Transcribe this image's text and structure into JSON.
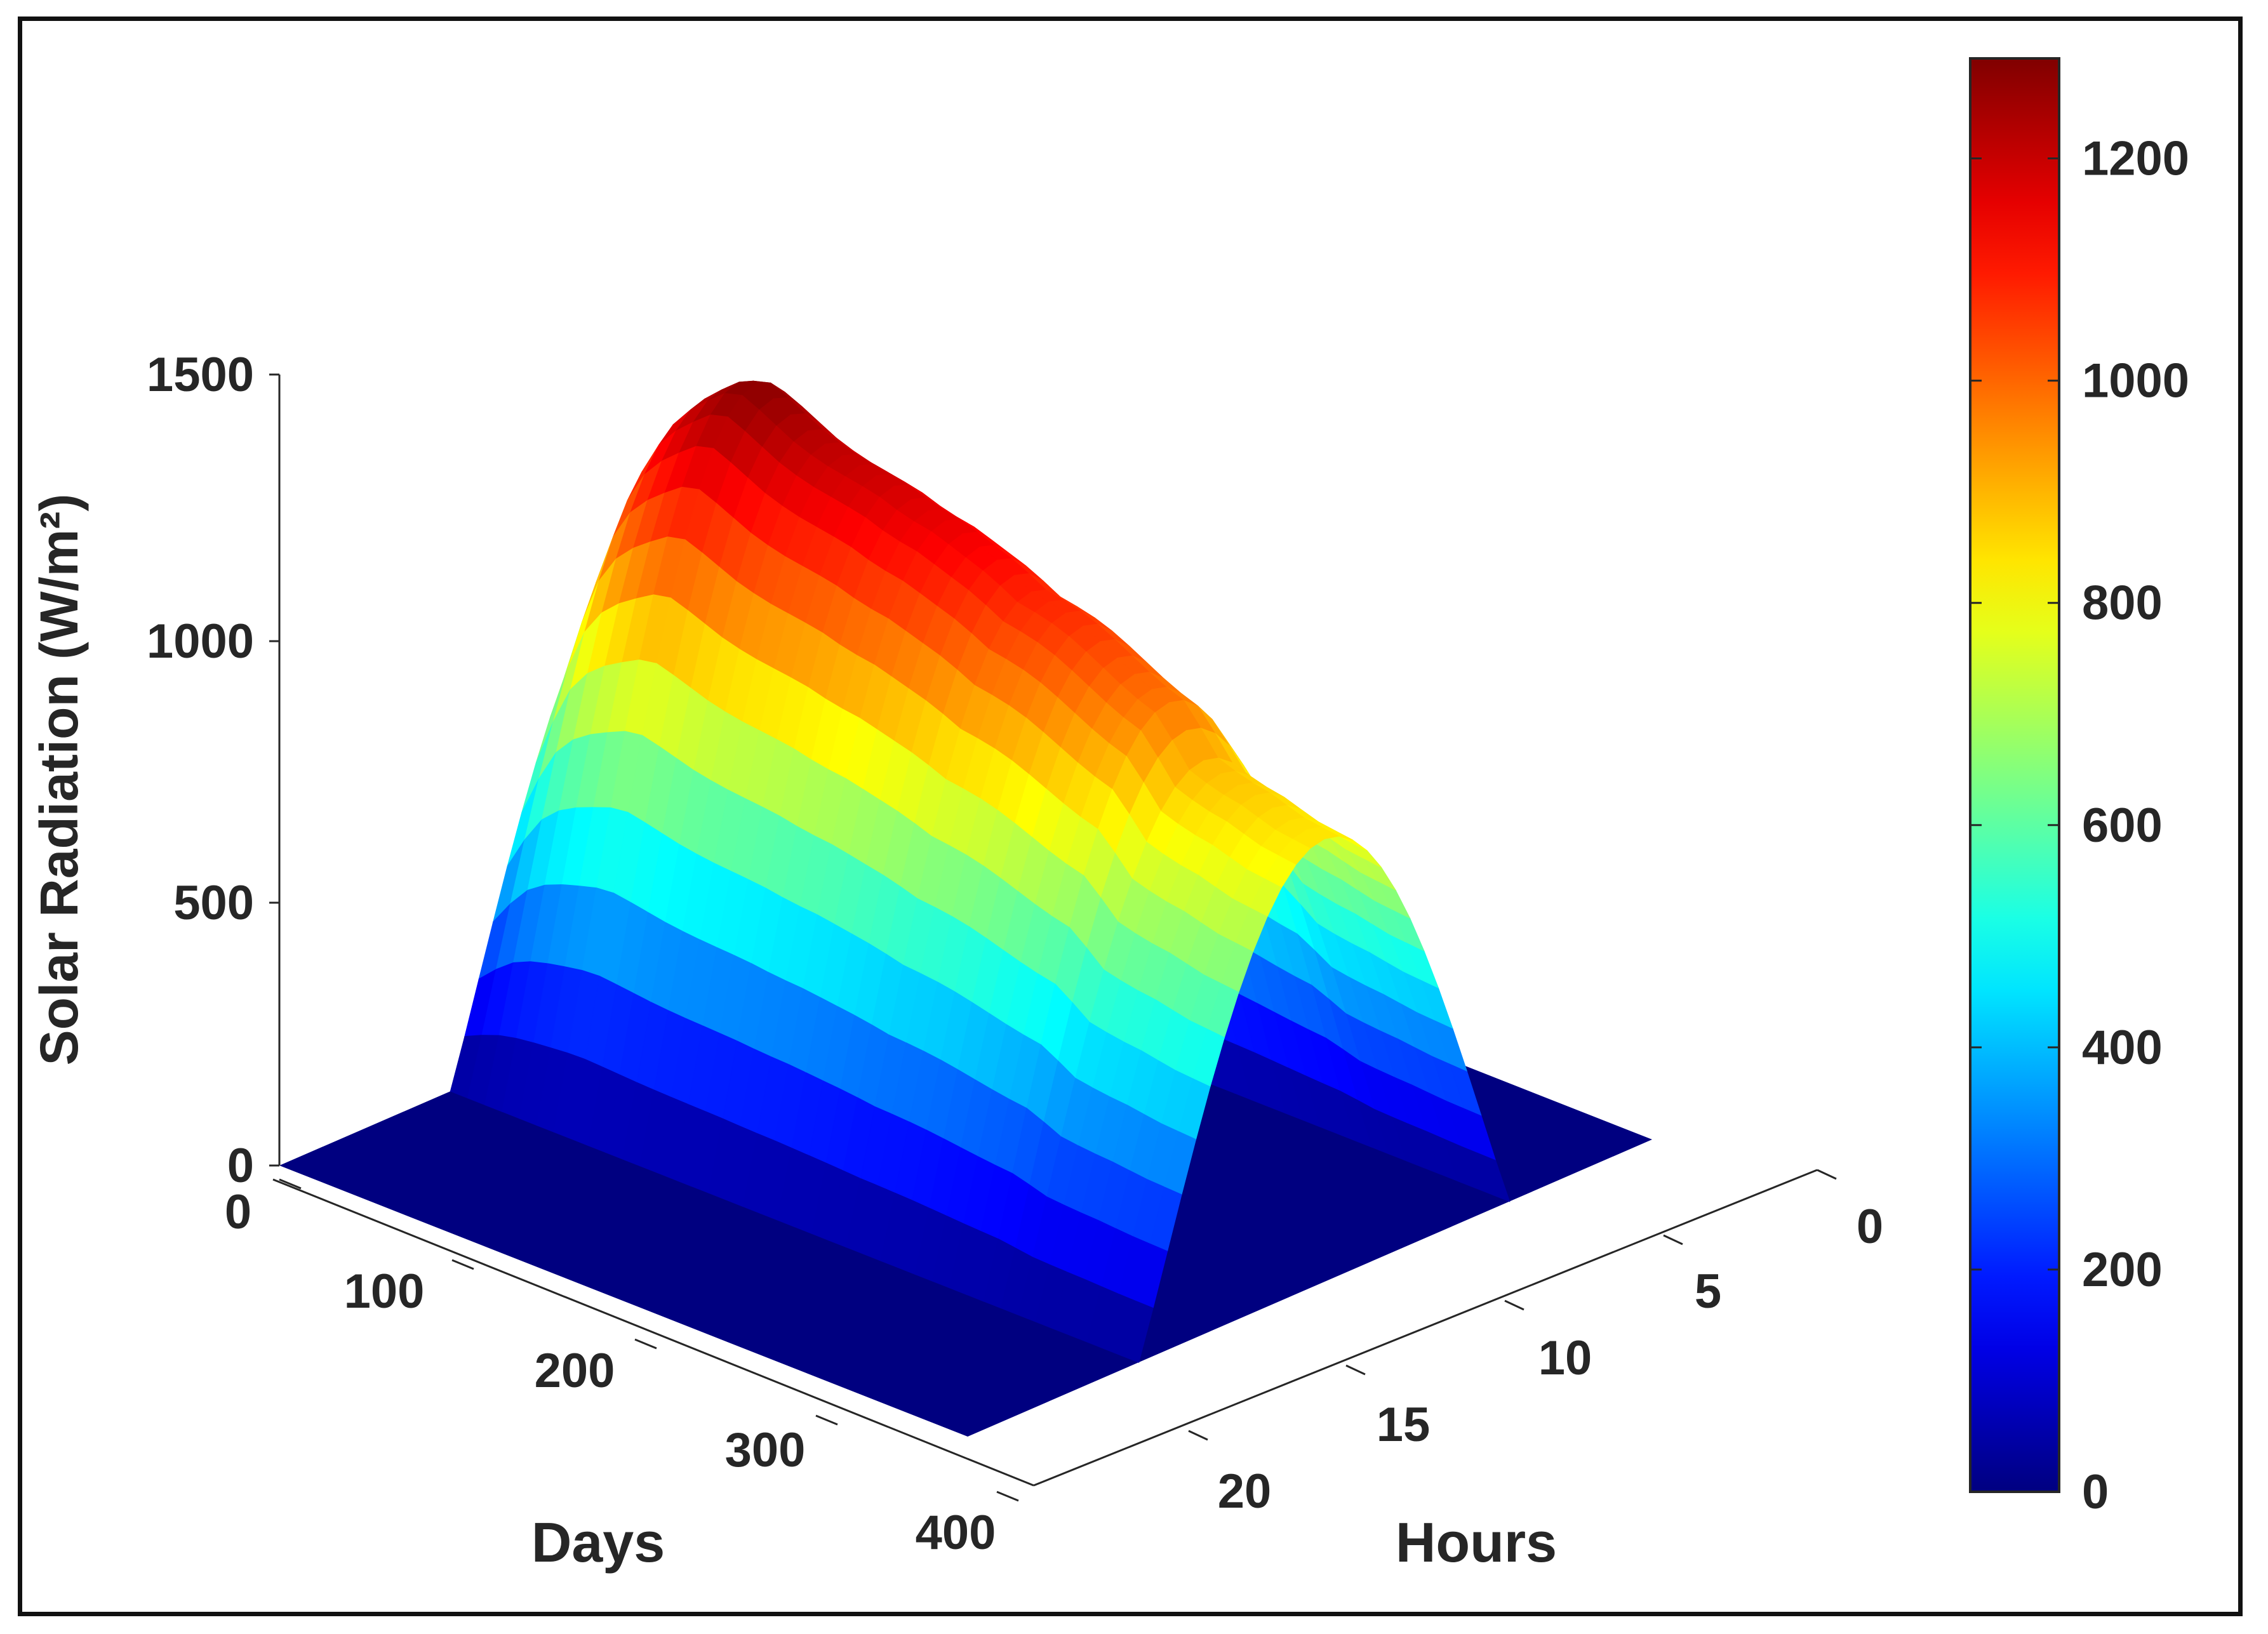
{
  "chart_data": {
    "type": "surface",
    "zlabel": "Solar Radiation (W/m²)",
    "xlabel": "Days",
    "ylabel": "Hours",
    "x_ticks": [
      "0",
      "100",
      "200",
      "300",
      "400"
    ],
    "y_ticks": [
      "0",
      "5",
      "10",
      "15",
      "20"
    ],
    "z_ticks": [
      "0",
      "500",
      "1000",
      "1500"
    ],
    "colorbar_ticks": [
      "0",
      "200",
      "400",
      "600",
      "800",
      "1000",
      "1200"
    ],
    "xlim": [
      0,
      365
    ],
    "ylim": [
      0,
      24
    ],
    "zlim": [
      0,
      1500
    ],
    "clim": [
      0,
      1290
    ],
    "colormap": "jet",
    "grid": false,
    "colorbar": "right",
    "daylight_hours": [
      6,
      19
    ],
    "peak_profile": {
      "days": [
        0,
        15,
        30,
        45,
        60,
        75,
        90,
        105,
        120,
        135,
        150,
        165,
        180,
        195,
        210,
        225,
        240,
        255,
        270,
        285,
        300,
        315,
        330,
        345,
        365
      ],
      "max_radiation": [
        850,
        1080,
        1190,
        1240,
        1285,
        1260,
        1230,
        1210,
        1200,
        1190,
        1170,
        1160,
        1140,
        1120,
        1090,
        1080,
        1060,
        1030,
        1000,
        980,
        900,
        880,
        870,
        850,
        840
      ]
    }
  }
}
